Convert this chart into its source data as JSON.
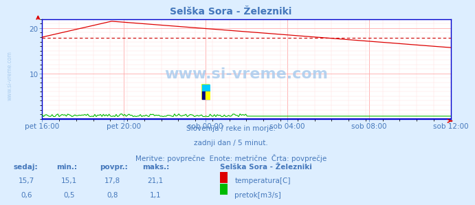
{
  "title": "Selška Sora - Železniki",
  "bg_color": "#ddeeff",
  "plot_bg_color": "#ffffff",
  "grid_color_major": "#ffaaaa",
  "grid_color_minor": "#ffdddd",
  "x_labels": [
    "pet 16:00",
    "pet 20:00",
    "sob 00:00",
    "sob 04:00",
    "sob 08:00",
    "sob 12:00"
  ],
  "ylim": [
    0,
    22
  ],
  "yticks": [
    10,
    20
  ],
  "temp_color": "#dd0000",
  "flow_color": "#00bb00",
  "height_color": "#0000cc",
  "avg_line_color": "#cc0000",
  "avg_value": 17.8,
  "spine_color": "#0000cc",
  "watermark": "www.si-vreme.com",
  "watermark_color": "#aaccee",
  "text_color": "#4477bb",
  "footer_line1": "Slovenija / reke in morje.",
  "footer_line2": "zadnji dan / 5 minut.",
  "footer_line3": "Meritve: povprečne  Enote: metrične  Črta: povprečje",
  "legend_title": "Selška Sora - Železniki",
  "table_headers": [
    "sedaj:",
    "min.:",
    "povpr.:",
    "maks.:"
  ],
  "row1_values": [
    "15,7",
    "15,1",
    "17,8",
    "21,1"
  ],
  "row2_values": [
    "0,6",
    "0,5",
    "0,8",
    "1,1"
  ],
  "legend1_label": "temperatura[C]",
  "legend2_label": "pretok[m3/s]",
  "logo_colors": [
    "#ffff00",
    "#00ccff",
    "#000000"
  ],
  "n_points": 288
}
